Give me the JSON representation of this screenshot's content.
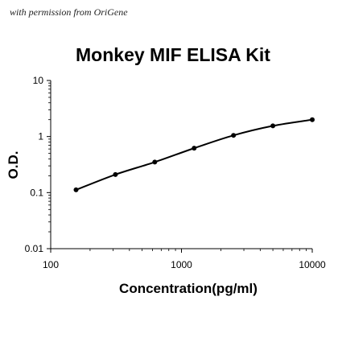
{
  "watermark": "with permission from OriGene",
  "chart_data": {
    "type": "scatter",
    "title": "Monkey MIF ELISA Kit",
    "xlabel": "Concentration(pg/ml)",
    "ylabel": "O.D.",
    "x_scale": "log",
    "y_scale": "log",
    "xlim": [
      100,
      10000
    ],
    "ylim": [
      0.01,
      10
    ],
    "x_ticks": [
      "100",
      "1000",
      "10000"
    ],
    "y_ticks": [
      "0.01",
      "0.1",
      "1",
      "10"
    ],
    "grid": false,
    "series": [
      {
        "x": [
          156.25,
          312.5,
          625,
          1250,
          2500,
          5000,
          10000
        ],
        "y": [
          0.112,
          0.21,
          0.35,
          0.62,
          1.05,
          1.55,
          2.0
        ],
        "marker": "circle",
        "line": "smooth fit",
        "color": "#000000"
      }
    ]
  }
}
